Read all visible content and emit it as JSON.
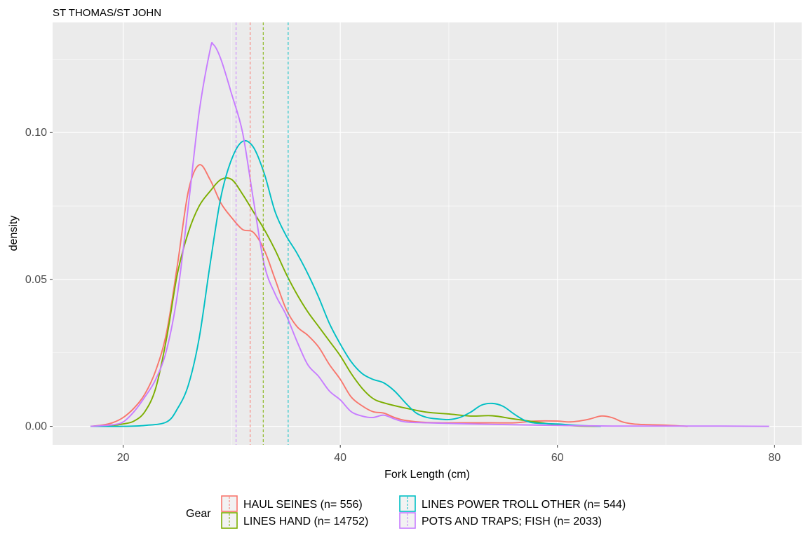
{
  "chart_data": {
    "type": "line",
    "title": "ST THOMAS/ST JOHN",
    "xlabel": "Fork Length (cm)",
    "ylabel": "density",
    "xlim": [
      13.5,
      82.5
    ],
    "ylim": [
      -0.0063,
      0.1375
    ],
    "x_ticks": [
      20,
      40,
      60,
      80
    ],
    "x_tick_labels": [
      "20",
      "40",
      "60",
      "80"
    ],
    "y_ticks": [
      0.0,
      0.05,
      0.1
    ],
    "y_tick_labels": [
      "0.00",
      "0.05",
      "0.10"
    ],
    "grid": true,
    "legend": {
      "title": "Gear",
      "position": "bottom"
    },
    "series": [
      {
        "name": "HAUL SEINES (n= 556)",
        "color": "#F8766D",
        "mean": 31.7,
        "points": [
          [
            17,
            0
          ],
          [
            18,
            0.0004
          ],
          [
            19,
            0.0012
          ],
          [
            20,
            0.003
          ],
          [
            21,
            0.0062
          ],
          [
            22,
            0.011
          ],
          [
            23,
            0.019
          ],
          [
            24,
            0.032
          ],
          [
            25,
            0.055
          ],
          [
            26,
            0.08
          ],
          [
            27,
            0.089
          ],
          [
            28,
            0.084
          ],
          [
            29,
            0.076
          ],
          [
            30,
            0.071
          ],
          [
            31,
            0.067
          ],
          [
            32,
            0.066
          ],
          [
            33,
            0.06
          ],
          [
            34,
            0.05
          ],
          [
            35,
            0.04
          ],
          [
            36,
            0.034
          ],
          [
            37,
            0.031
          ],
          [
            38,
            0.027
          ],
          [
            39,
            0.021
          ],
          [
            40,
            0.016
          ],
          [
            41,
            0.01
          ],
          [
            42,
            0.007
          ],
          [
            43,
            0.005
          ],
          [
            44,
            0.0045
          ],
          [
            45,
            0.003
          ],
          [
            46,
            0.002
          ],
          [
            48,
            0.0013
          ],
          [
            50,
            0.0012
          ],
          [
            52,
            0.0012
          ],
          [
            54,
            0.0012
          ],
          [
            56,
            0.0012
          ],
          [
            58,
            0.0018
          ],
          [
            60,
            0.0018
          ],
          [
            61,
            0.0015
          ],
          [
            62,
            0.0018
          ],
          [
            63,
            0.0025
          ],
          [
            64,
            0.0035
          ],
          [
            65,
            0.003
          ],
          [
            66,
            0.0015
          ],
          [
            67,
            0.0008
          ],
          [
            68,
            0.0006
          ],
          [
            70,
            0.0004
          ],
          [
            72,
            0
          ]
        ]
      },
      {
        "name": "LINES HAND (n= 14752)",
        "color": "#7CAE00",
        "mean": 32.9,
        "points": [
          [
            17,
            0
          ],
          [
            19,
            0.0003
          ],
          [
            20,
            0.0008
          ],
          [
            21,
            0.0018
          ],
          [
            22,
            0.005
          ],
          [
            23,
            0.013
          ],
          [
            24,
            0.03
          ],
          [
            25,
            0.052
          ],
          [
            26,
            0.066
          ],
          [
            27,
            0.075
          ],
          [
            28,
            0.08
          ],
          [
            29,
            0.084
          ],
          [
            30,
            0.084
          ],
          [
            31,
            0.079
          ],
          [
            32,
            0.073
          ],
          [
            33,
            0.067
          ],
          [
            34,
            0.06
          ],
          [
            35,
            0.052
          ],
          [
            36,
            0.045
          ],
          [
            37,
            0.039
          ],
          [
            38,
            0.034
          ],
          [
            39,
            0.029
          ],
          [
            40,
            0.024
          ],
          [
            41,
            0.018
          ],
          [
            42,
            0.013
          ],
          [
            43,
            0.0095
          ],
          [
            44,
            0.008
          ],
          [
            46,
            0.0062
          ],
          [
            48,
            0.0048
          ],
          [
            50,
            0.0042
          ],
          [
            52,
            0.0035
          ],
          [
            54,
            0.0036
          ],
          [
            56,
            0.0025
          ],
          [
            58,
            0.0015
          ],
          [
            60,
            0.0005
          ],
          [
            62,
            0.0001
          ],
          [
            64,
            0
          ]
        ]
      },
      {
        "name": "LINES POWER TROLL OTHER (n= 544)",
        "color": "#00BFC4",
        "mean": 35.2,
        "points": [
          [
            17,
            0
          ],
          [
            20,
            0
          ],
          [
            22,
            0.0003
          ],
          [
            24,
            0.0015
          ],
          [
            25,
            0.006
          ],
          [
            26,
            0.014
          ],
          [
            27,
            0.03
          ],
          [
            28,
            0.055
          ],
          [
            29,
            0.078
          ],
          [
            30,
            0.091
          ],
          [
            31,
            0.097
          ],
          [
            32,
            0.095
          ],
          [
            33,
            0.086
          ],
          [
            34,
            0.073
          ],
          [
            35,
            0.065
          ],
          [
            36,
            0.059
          ],
          [
            37,
            0.052
          ],
          [
            38,
            0.044
          ],
          [
            39,
            0.035
          ],
          [
            40,
            0.028
          ],
          [
            41,
            0.022
          ],
          [
            42,
            0.018
          ],
          [
            43,
            0.016
          ],
          [
            44,
            0.0148
          ],
          [
            45,
            0.012
          ],
          [
            46,
            0.008
          ],
          [
            47,
            0.0045
          ],
          [
            48,
            0.003
          ],
          [
            49,
            0.0025
          ],
          [
            50,
            0.0023
          ],
          [
            51,
            0.003
          ],
          [
            52,
            0.0048
          ],
          [
            53,
            0.0072
          ],
          [
            54,
            0.0078
          ],
          [
            55,
            0.0068
          ],
          [
            56,
            0.0042
          ],
          [
            57,
            0.002
          ],
          [
            58,
            0.0011
          ],
          [
            60,
            0.0008
          ],
          [
            62,
            0.0003
          ],
          [
            64,
            0
          ]
        ]
      },
      {
        "name": "POTS AND TRAPS; FISH (n= 2033)",
        "color": "#C77CFF",
        "mean": 30.4,
        "points": [
          [
            17,
            0
          ],
          [
            19,
            0.0005
          ],
          [
            20,
            0.0015
          ],
          [
            21,
            0.005
          ],
          [
            22,
            0.01
          ],
          [
            23,
            0.016
          ],
          [
            24,
            0.026
          ],
          [
            25,
            0.045
          ],
          [
            26,
            0.075
          ],
          [
            27,
            0.107
          ],
          [
            28,
            0.128
          ],
          [
            28.3,
            0.13
          ],
          [
            29,
            0.125
          ],
          [
            30,
            0.113
          ],
          [
            31,
            0.1
          ],
          [
            32,
            0.077
          ],
          [
            33,
            0.055
          ],
          [
            34,
            0.045
          ],
          [
            35,
            0.038
          ],
          [
            36,
            0.029
          ],
          [
            37,
            0.021
          ],
          [
            38,
            0.017
          ],
          [
            39,
            0.012
          ],
          [
            40,
            0.009
          ],
          [
            41,
            0.005
          ],
          [
            42,
            0.0035
          ],
          [
            43,
            0.003
          ],
          [
            44,
            0.0038
          ],
          [
            45,
            0.0025
          ],
          [
            46,
            0.0015
          ],
          [
            48,
            0.0012
          ],
          [
            50,
            0.001
          ],
          [
            52,
            0.0008
          ],
          [
            55,
            0.0006
          ],
          [
            60,
            0.0003
          ],
          [
            65,
            0.0001
          ],
          [
            70,
            0.0001
          ],
          [
            75,
            0.0001
          ],
          [
            79.5,
            0
          ]
        ]
      }
    ]
  }
}
